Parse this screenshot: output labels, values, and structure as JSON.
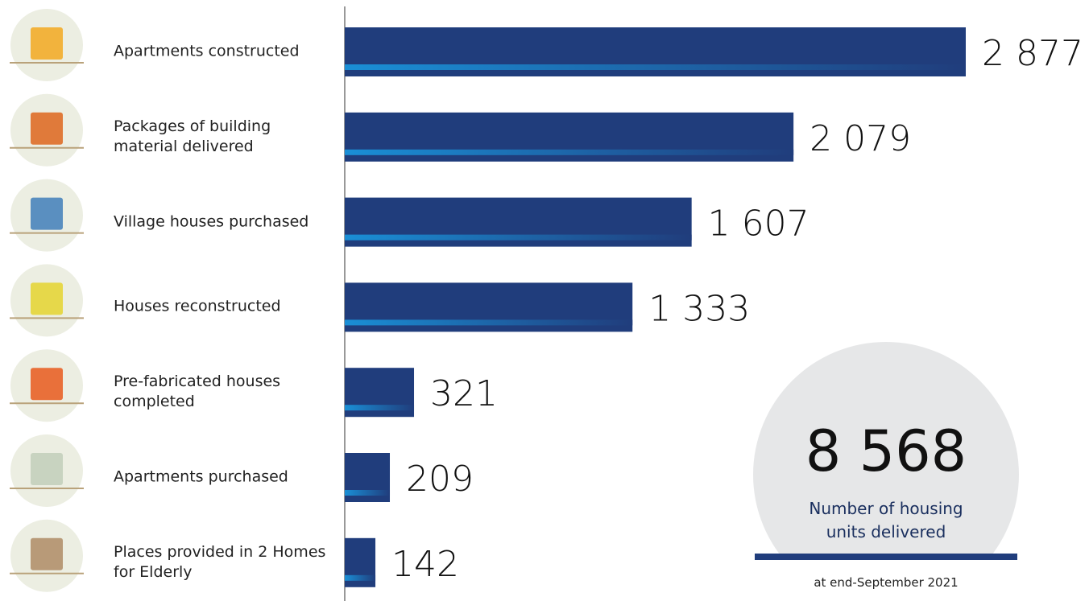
{
  "chart_data": {
    "type": "bar",
    "orientation": "horizontal",
    "categories": [
      "Apartments constructed",
      "Packages of building material delivered",
      "Village houses purchased",
      "Houses reconstructed",
      "Pre-fabricated houses completed",
      "Apartments purchased",
      "Places provided in 2 Homes for Elderly"
    ],
    "values": [
      2877,
      2079,
      1607,
      1333,
      321,
      209,
      142
    ],
    "value_labels": [
      "2 877",
      "2 079",
      "1 607",
      "1 333",
      "321",
      "209",
      "142"
    ],
    "color": "#203d7c",
    "total": {
      "value": 8568,
      "label": "8 568"
    },
    "total_caption": "Number of housing units delivered",
    "note": "at end-September 2021"
  }
}
